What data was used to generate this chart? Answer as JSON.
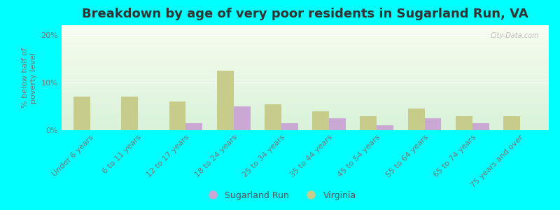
{
  "title": "Breakdown by age of very poor residents in Sugarland Run, VA",
  "categories": [
    "Under 6 years",
    "6 to 11 years",
    "12 to 17 years",
    "18 to 24 years",
    "25 to 34 years",
    "35 to 44 years",
    "45 to 54 years",
    "55 to 64 years",
    "65 to 74 years",
    "75 years and over"
  ],
  "sugarland_run": [
    0,
    0,
    1.5,
    5.0,
    1.5,
    2.5,
    1.0,
    2.5,
    1.5,
    0
  ],
  "virginia": [
    7.0,
    7.0,
    6.0,
    12.5,
    5.5,
    4.0,
    3.0,
    4.5,
    3.0,
    3.0
  ],
  "sugarland_color": "#c9a8d4",
  "virginia_color": "#c8cc8a",
  "background_color": "#00ffff",
  "ylabel": "% below half of\npoverty level",
  "ylim": [
    0,
    22
  ],
  "yticks": [
    0,
    10,
    20
  ],
  "ytick_labels": [
    "0%",
    "10%",
    "20%"
  ],
  "bar_width": 0.35,
  "legend_sugarland": "Sugarland Run",
  "legend_virginia": "Virginia",
  "title_fontsize": 13,
  "axis_fontsize": 8,
  "tick_fontsize": 8
}
